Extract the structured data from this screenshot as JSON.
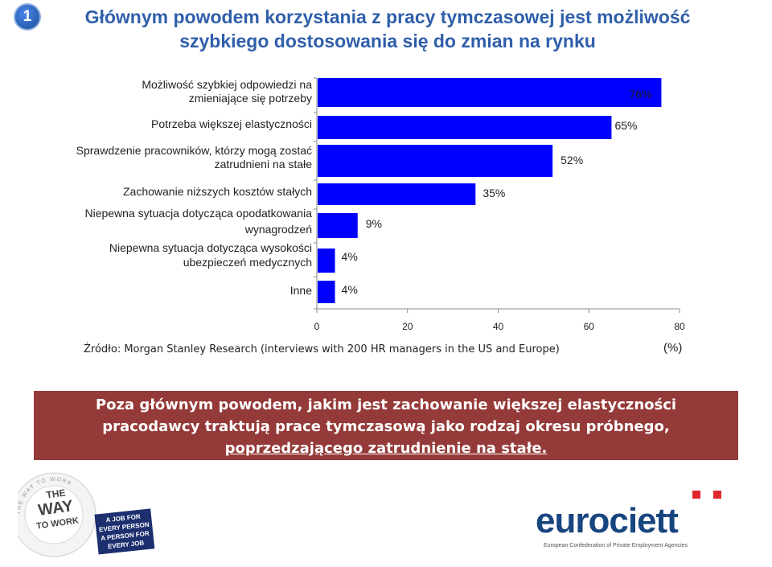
{
  "slide": {
    "number": "1",
    "title_lines": [
      "Głównym powodem korzystania z pracy tymczasowej jest możliwość",
      "szybkiego dostosowania się do zmian na rynku"
    ],
    "source": "Źródło: Morgan Stanley Research (interviews with 200 HR managers in the US and Europe)",
    "unit": "(%)",
    "banner_lines": [
      "Poza głównym powodem, jakim jest zachowanie większej elastyczności",
      "pracodawcy traktują prace tymczasową jako rodzaj okresu próbnego,",
      "poprzedzającego zatrudnienie na stałe."
    ]
  },
  "logos": {
    "left": {
      "lines": [
        "THE",
        "WAY",
        "TO WORK"
      ],
      "badge_lines": [
        "A JOB FOR",
        "EVERY PERSON",
        "A PERSON FOR",
        "EVERY JOB"
      ],
      "ring_text": "THE WAY TO WORK"
    },
    "right": {
      "name": "eurociett",
      "tagline": "European Confederation of Private Employment Agencies"
    }
  },
  "colors": {
    "bar": "#0000ff",
    "title": "#2f5fab",
    "banner": "#943a38",
    "logo_blue": "#17457f",
    "logo_red": "#e0262e"
  },
  "chart_data": {
    "type": "bar",
    "orientation": "horizontal",
    "categories": [
      [
        "Możliwość szybkiej odpowiedzi na",
        "zmieniające się potrzeby"
      ],
      [
        "Potrzeba większej elastyczności"
      ],
      [
        "Sprawdzenie pracowników, którzy mogą zostać",
        "zatrudnieni na stałe"
      ],
      [
        "Zachowanie niższych kosztów stałych"
      ],
      [
        "Niepewna sytuacja dotycząca opodatkowania",
        "wynagrodzeń"
      ],
      [
        "Niepewna sytuacja dotycząca wysokości",
        "ubezpieczeń medycznych"
      ],
      [
        "Inne"
      ]
    ],
    "values": [
      76,
      65,
      52,
      35,
      9,
      4,
      4
    ],
    "value_labels": [
      "76%",
      "65%",
      "52%",
      "35%",
      "9%",
      "4%",
      "4%"
    ],
    "xticks": [
      "0",
      "20",
      "40",
      "60",
      "80"
    ],
    "xlim": [
      0,
      80
    ],
    "xlabel": "(%)",
    "grid": false
  }
}
